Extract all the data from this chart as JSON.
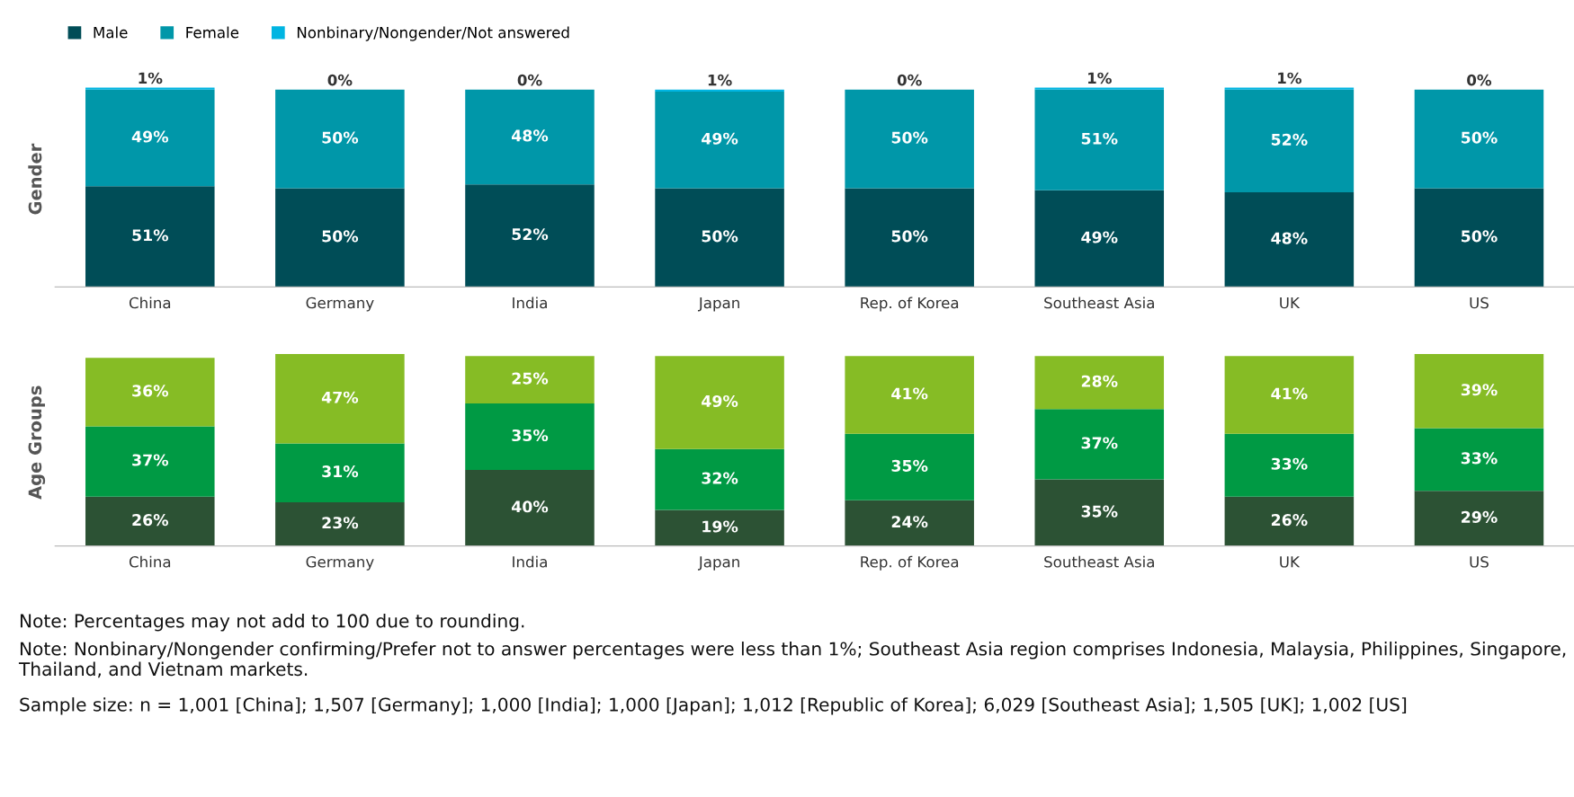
{
  "chart_data": [
    {
      "type": "bar",
      "stacked": true,
      "ylabel": "Gender",
      "legend": "top left",
      "tick_labels": "x",
      "grid": false,
      "categories": [
        "China",
        "Germany",
        "India",
        "Japan",
        "Rep. of Korea",
        "Southeast Asia",
        "UK",
        "US"
      ],
      "series": [
        {
          "name": "Male",
          "color": "#004d57",
          "values": [
            51,
            50,
            52,
            50,
            50,
            49,
            48,
            50
          ],
          "value_labels": [
            "51%",
            "50%",
            "52%",
            "50%",
            "50%",
            "49%",
            "48%",
            "50%"
          ]
        },
        {
          "name": "Female",
          "color": "#0097a9",
          "values": [
            49,
            50,
            48,
            49,
            50,
            51,
            52,
            50
          ],
          "value_labels": [
            "49%",
            "50%",
            "48%",
            "49%",
            "50%",
            "51%",
            "52%",
            "50%"
          ]
        },
        {
          "name": "Nonbinary/Nongender/Not answered",
          "color": "#00b5e2",
          "values": [
            1,
            0,
            0,
            1,
            0,
            1,
            1,
            0
          ],
          "value_labels": [
            "1%",
            "0%",
            "0%",
            "1%",
            "0%",
            "1%",
            "1%",
            "0%"
          ]
        }
      ]
    },
    {
      "type": "bar",
      "stacked": true,
      "ylabel": "Age Groups",
      "tick_labels": "x",
      "grid": false,
      "categories": [
        "China",
        "Germany",
        "India",
        "Japan",
        "Rep. of Korea",
        "Southeast Asia",
        "UK",
        "US"
      ],
      "series": [
        {
          "color": "#2c5234",
          "values": [
            26,
            23,
            40,
            19,
            24,
            35,
            26,
            29
          ],
          "value_labels": [
            "26%",
            "23%",
            "40%",
            "19%",
            "24%",
            "35%",
            "26%",
            "29%"
          ]
        },
        {
          "color": "#009a44",
          "values": [
            37,
            31,
            35,
            32,
            35,
            37,
            33,
            33
          ],
          "value_labels": [
            "37%",
            "31%",
            "35%",
            "32%",
            "35%",
            "37%",
            "33%",
            "33%"
          ]
        },
        {
          "color": "#86bc25",
          "values": [
            36,
            47,
            25,
            49,
            41,
            28,
            41,
            39
          ],
          "value_labels": [
            "36%",
            "47%",
            "25%",
            "49%",
            "41%",
            "28%",
            "41%",
            "39%"
          ]
        }
      ],
      "annotations": [
        "Note: Percentages may not add to 100 due to rounding.",
        "Note: Nonbinary/Nongender confirming/Prefer not to answer percentages were less than 1%; Southeast Asia region comprises Indonesia, Malaysia, Philippines, Singapore, Thailand, and Vietnam markets.",
        "Sample size: n = 1,001 [China]; 1,507 [Germany]; 1,000 [India]; 1,000 [Japan]; 1,012 [Republic of Korea]; 6,029 [Southeast Asia]; 1,505 [UK]; 1,002 [US]"
      ]
    }
  ]
}
